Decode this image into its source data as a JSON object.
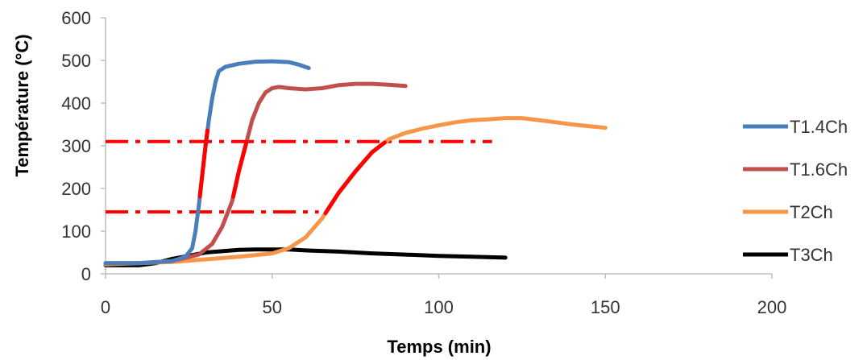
{
  "chart_data": {
    "type": "line",
    "xlabel": "Temps (min)",
    "ylabel": "Température (°C)",
    "xlim": [
      0,
      200
    ],
    "ylim": [
      0,
      600
    ],
    "x_ticks": [
      0,
      50,
      100,
      150,
      200
    ],
    "y_ticks": [
      0,
      100,
      200,
      300,
      400,
      500,
      600
    ],
    "grid": false,
    "legend_position": "right",
    "series": [
      {
        "name": "T1.4Ch",
        "color": "#4a7ebb",
        "points": [
          [
            0,
            25
          ],
          [
            10,
            25
          ],
          [
            20,
            30
          ],
          [
            24,
            40
          ],
          [
            26,
            60
          ],
          [
            27,
            100
          ],
          [
            28,
            160
          ],
          [
            29,
            230
          ],
          [
            30,
            300
          ],
          [
            31,
            360
          ],
          [
            32,
            410
          ],
          [
            33,
            450
          ],
          [
            34,
            475
          ],
          [
            36,
            485
          ],
          [
            40,
            492
          ],
          [
            45,
            497
          ],
          [
            50,
            498
          ],
          [
            55,
            496
          ],
          [
            58,
            490
          ],
          [
            61,
            482
          ]
        ]
      },
      {
        "name": "T1.6Ch",
        "color": "#c0504d",
        "points": [
          [
            0,
            25
          ],
          [
            10,
            25
          ],
          [
            20,
            30
          ],
          [
            28,
            45
          ],
          [
            32,
            70
          ],
          [
            35,
            110
          ],
          [
            38,
            170
          ],
          [
            40,
            240
          ],
          [
            42,
            300
          ],
          [
            44,
            360
          ],
          [
            46,
            400
          ],
          [
            48,
            425
          ],
          [
            50,
            435
          ],
          [
            52,
            438
          ],
          [
            55,
            435
          ],
          [
            60,
            432
          ],
          [
            65,
            435
          ],
          [
            70,
            442
          ],
          [
            75,
            445
          ],
          [
            80,
            445
          ],
          [
            85,
            443
          ],
          [
            90,
            440
          ]
        ]
      },
      {
        "name": "T2Ch",
        "color": "#f79646",
        "points": [
          [
            0,
            22
          ],
          [
            20,
            28
          ],
          [
            40,
            40
          ],
          [
            50,
            48
          ],
          [
            55,
            60
          ],
          [
            60,
            85
          ],
          [
            65,
            130
          ],
          [
            70,
            190
          ],
          [
            75,
            240
          ],
          [
            80,
            285
          ],
          [
            85,
            315
          ],
          [
            90,
            330
          ],
          [
            95,
            340
          ],
          [
            100,
            348
          ],
          [
            105,
            355
          ],
          [
            110,
            360
          ],
          [
            115,
            362
          ],
          [
            120,
            365
          ],
          [
            125,
            365
          ],
          [
            130,
            360
          ],
          [
            135,
            355
          ],
          [
            140,
            350
          ],
          [
            145,
            346
          ],
          [
            150,
            342
          ]
        ]
      },
      {
        "name": "T3Ch",
        "color": "#000000",
        "points": [
          [
            0,
            20
          ],
          [
            10,
            20
          ],
          [
            15,
            25
          ],
          [
            20,
            35
          ],
          [
            25,
            42
          ],
          [
            30,
            50
          ],
          [
            35,
            53
          ],
          [
            40,
            56
          ],
          [
            45,
            57
          ],
          [
            50,
            57
          ],
          [
            55,
            57
          ],
          [
            60,
            55
          ],
          [
            70,
            52
          ],
          [
            80,
            48
          ],
          [
            90,
            45
          ],
          [
            100,
            42
          ],
          [
            110,
            40
          ],
          [
            120,
            38
          ]
        ]
      }
    ],
    "annotations": {
      "threshold_lines": [
        {
          "y": 310,
          "x_start": 0,
          "x_end": 116,
          "color": "#ff0000",
          "style": "dash-dot"
        },
        {
          "y": 145,
          "x_start": 0,
          "x_end": 64,
          "color": "#ff0000",
          "style": "dash-dot"
        }
      ],
      "highlight_segments": [
        {
          "series": "T1.4Ch",
          "x_start": 28.3,
          "x_end": 30.6,
          "color": "#ff0000"
        },
        {
          "series": "T1.6Ch",
          "x_start": 38.3,
          "x_end": 42.3,
          "color": "#ff0000"
        },
        {
          "series": "T2Ch",
          "x_start": 66.0,
          "x_end": 83.8,
          "color": "#ff0000"
        }
      ]
    }
  }
}
